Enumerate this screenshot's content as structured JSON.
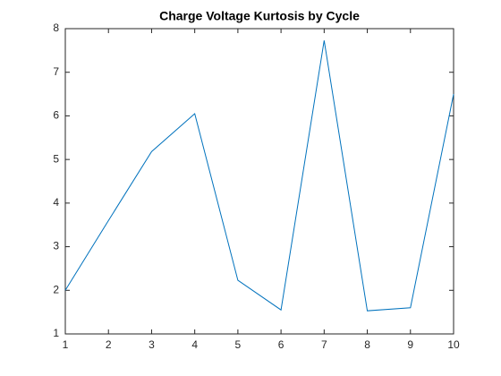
{
  "chart_data": {
    "type": "line",
    "title": "Charge Voltage Kurtosis by Cycle",
    "x": [
      1,
      2,
      3,
      4,
      5,
      6,
      7,
      8,
      9,
      10
    ],
    "values": [
      2.0,
      3.6,
      5.18,
      6.05,
      2.23,
      1.55,
      7.73,
      1.53,
      1.6,
      6.5
    ],
    "color": "#0072bd",
    "xlim": [
      1,
      10
    ],
    "xticks": [
      1,
      2,
      3,
      4,
      5,
      6,
      7,
      8,
      9,
      10
    ],
    "ylim": [
      1,
      8
    ],
    "yticks": [
      1,
      2,
      3,
      4,
      5,
      6,
      7,
      8
    ]
  }
}
